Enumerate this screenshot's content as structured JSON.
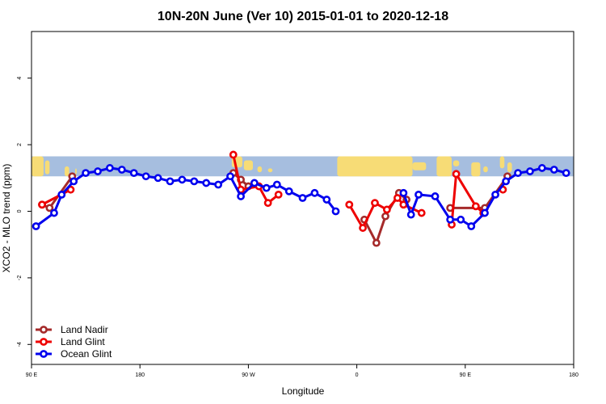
{
  "chart_data": {
    "type": "line",
    "title": "10N-20N June (Ver 10)   2015-01-01 to 2020-12-18",
    "xlabel": "Longitude",
    "ylabel": "XCO2 - MLO trend (ppm)",
    "xlim": [
      0,
      360
    ],
    "ylim": [
      -4.6,
      5.4
    ],
    "x_ticks": [
      {
        "value": 0,
        "label": "90 E"
      },
      {
        "value": 72,
        "label": "180"
      },
      {
        "value": 144,
        "label": "90 W"
      },
      {
        "value": 216,
        "label": "0"
      },
      {
        "value": 288,
        "label": "90 E"
      },
      {
        "value": 360,
        "label": "180"
      }
    ],
    "y_ticks": [
      {
        "value": -4,
        "label": "-4"
      },
      {
        "value": -2,
        "label": "-2"
      },
      {
        "value": 0,
        "label": "0"
      },
      {
        "value": 2,
        "label": "2"
      },
      {
        "value": 4,
        "label": "4"
      }
    ],
    "map_band": {
      "y_range": [
        1.05,
        1.65
      ],
      "ocean_color": "#a6bedf",
      "land_color": "#f7dc76"
    },
    "legend_position": "bottom-left",
    "series": [
      {
        "name": "Land Nadir",
        "color": "#a52a2a",
        "segments": [
          [
            [
              7,
              0.2
            ],
            [
              12,
              0.1
            ],
            [
              27,
              1.05
            ]
          ],
          [
            [
              134,
              1.15
            ],
            [
              139,
              0.95
            ],
            [
              144,
              0.75
            ]
          ],
          [
            [
              221,
              -0.25
            ],
            [
              229,
              -0.95
            ],
            [
              235,
              -0.15
            ],
            [
              244,
              0.55
            ],
            [
              249,
              0.35
            ]
          ],
          [
            [
              278,
              0.1
            ],
            [
              301,
              0.1
            ],
            [
              316,
              1.05
            ]
          ]
        ]
      },
      {
        "name": "Land Glint",
        "color": "#ee0000",
        "segments": [
          [
            [
              7,
              0.2
            ],
            [
              26,
              0.65
            ]
          ],
          [
            [
              134,
              1.7
            ],
            [
              139,
              0.65
            ],
            [
              151,
              0.75
            ],
            [
              157,
              0.25
            ],
            [
              164,
              0.5
            ]
          ],
          [
            [
              211,
              0.2
            ],
            [
              220,
              -0.5
            ],
            [
              228,
              0.25
            ],
            [
              236,
              0.05
            ],
            [
              243,
              0.4
            ],
            [
              247,
              0.2
            ],
            [
              259,
              -0.05
            ]
          ],
          [
            [
              279,
              -0.4
            ],
            [
              282,
              1.12
            ],
            [
              295,
              0.15
            ],
            [
              300,
              -0.05
            ]
          ],
          [
            [
              313,
              0.65
            ]
          ]
        ]
      },
      {
        "name": "Ocean Glint",
        "color": "#0000ee",
        "segments": [
          [
            [
              3,
              -0.45
            ],
            [
              15,
              -0.05
            ],
            [
              20,
              0.5
            ],
            [
              28,
              0.9
            ],
            [
              36,
              1.15
            ],
            [
              44,
              1.2
            ],
            [
              52,
              1.3
            ],
            [
              60,
              1.25
            ],
            [
              68,
              1.15
            ],
            [
              76,
              1.05
            ],
            [
              84,
              1.0
            ],
            [
              92,
              0.9
            ],
            [
              100,
              0.95
            ],
            [
              108,
              0.9
            ],
            [
              116,
              0.85
            ],
            [
              124,
              0.8
            ],
            [
              132,
              1.05
            ],
            [
              139,
              0.45
            ],
            [
              148,
              0.85
            ],
            [
              156,
              0.7
            ],
            [
              163,
              0.8
            ],
            [
              171,
              0.6
            ],
            [
              180,
              0.4
            ],
            [
              188,
              0.55
            ],
            [
              196,
              0.35
            ],
            [
              202,
              0.0
            ]
          ],
          [
            [
              247,
              0.55
            ],
            [
              252,
              -0.1
            ],
            [
              257,
              0.5
            ],
            [
              268,
              0.45
            ],
            [
              278,
              -0.25
            ],
            [
              285,
              -0.25
            ],
            [
              292,
              -0.45
            ],
            [
              301,
              -0.05
            ],
            [
              308,
              0.5
            ],
            [
              315,
              0.9
            ],
            [
              323,
              1.15
            ],
            [
              331,
              1.2
            ],
            [
              339,
              1.3
            ],
            [
              347,
              1.25
            ],
            [
              355,
              1.15
            ]
          ]
        ]
      }
    ]
  }
}
